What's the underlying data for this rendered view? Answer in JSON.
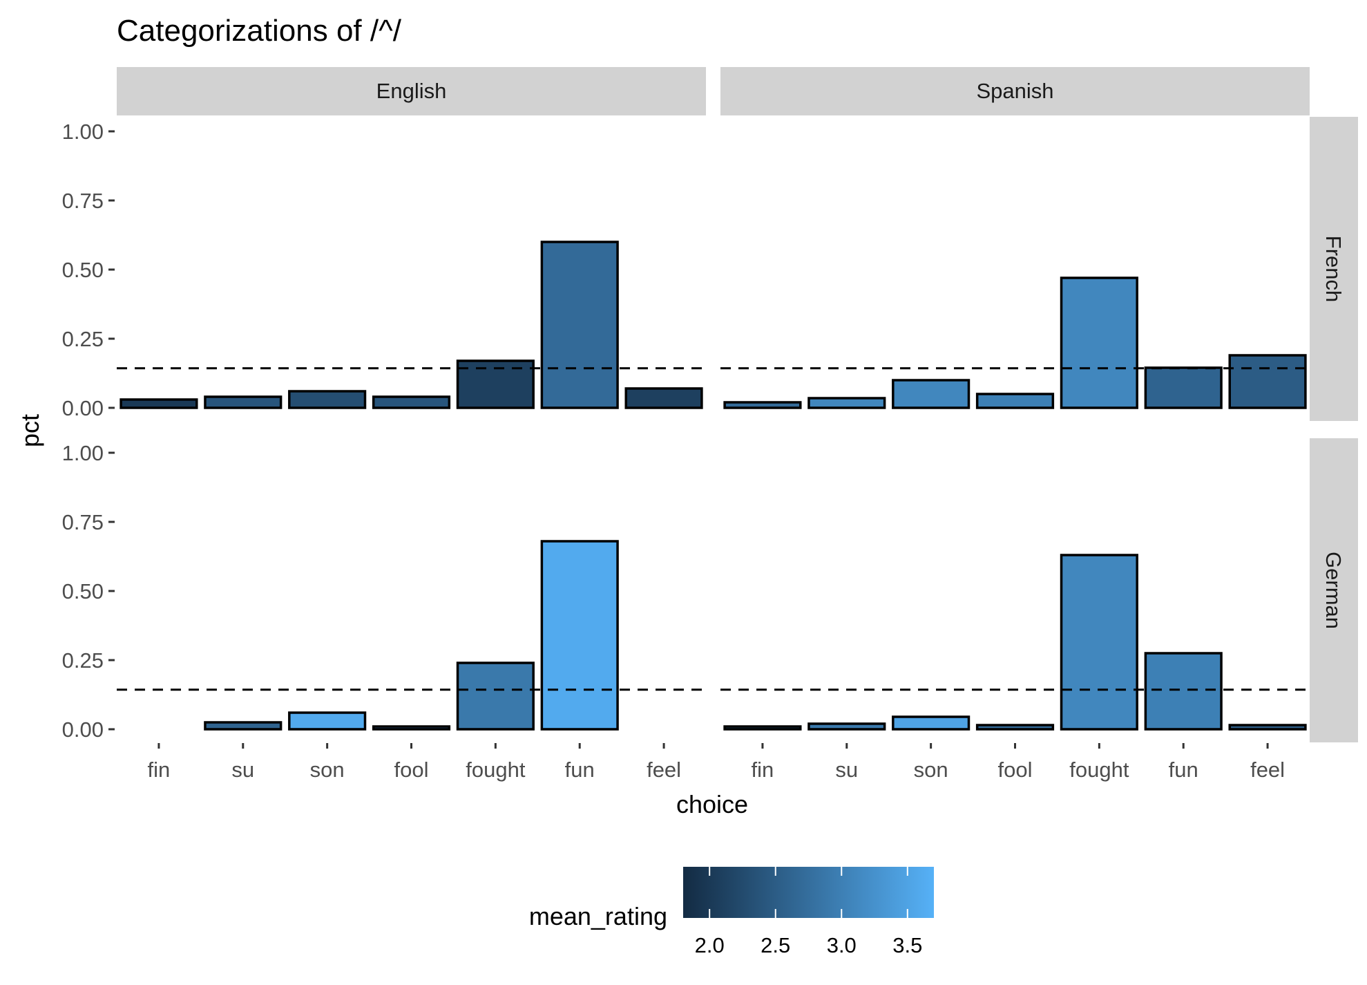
{
  "chart_data": {
    "type": "bar",
    "title": "Categorizations of /^/",
    "xlabel": "choice",
    "ylabel": "pct",
    "ylim": [
      0,
      1
    ],
    "yticks": [
      "0.00",
      "0.25",
      "0.50",
      "0.75",
      "1.00"
    ],
    "categories": [
      "fin",
      "su",
      "son",
      "fool",
      "fought",
      "fun",
      "feel"
    ],
    "col_facets": [
      "English",
      "Spanish"
    ],
    "row_facets": [
      "French",
      "German"
    ],
    "reference_line": 0.143,
    "panels": [
      {
        "col": "English",
        "row": "French",
        "values": [
          0.03,
          0.04,
          0.06,
          0.04,
          0.17,
          0.6,
          0.07
        ],
        "mean_rating": [
          2.0,
          2.4,
          2.3,
          2.4,
          2.1,
          2.7,
          2.1
        ]
      },
      {
        "col": "Spanish",
        "row": "French",
        "values": [
          0.02,
          0.035,
          0.1,
          0.05,
          0.47,
          0.145,
          0.19
        ],
        "mean_rating": [
          2.7,
          3.1,
          3.1,
          3.0,
          3.1,
          2.6,
          2.5
        ]
      },
      {
        "col": "English",
        "row": "German",
        "values": [
          0.0,
          0.025,
          0.06,
          0.01,
          0.24,
          0.68,
          0.0
        ],
        "mean_rating": [
          null,
          2.6,
          3.6,
          2.6,
          2.9,
          3.6,
          null
        ]
      },
      {
        "col": "Spanish",
        "row": "German",
        "values": [
          0.01,
          0.02,
          0.045,
          0.015,
          0.63,
          0.275,
          0.015
        ],
        "mean_rating": [
          2.2,
          2.9,
          3.5,
          2.7,
          3.1,
          3.0,
          2.5
        ]
      }
    ],
    "legend": {
      "title": "mean_rating",
      "position": "bottom",
      "range": [
        1.8,
        3.7
      ],
      "ticks": [
        "2.0",
        "2.5",
        "3.0",
        "3.5"
      ],
      "color_low": "#132B43",
      "color_high": "#56B1F7"
    },
    "grid": false
  }
}
